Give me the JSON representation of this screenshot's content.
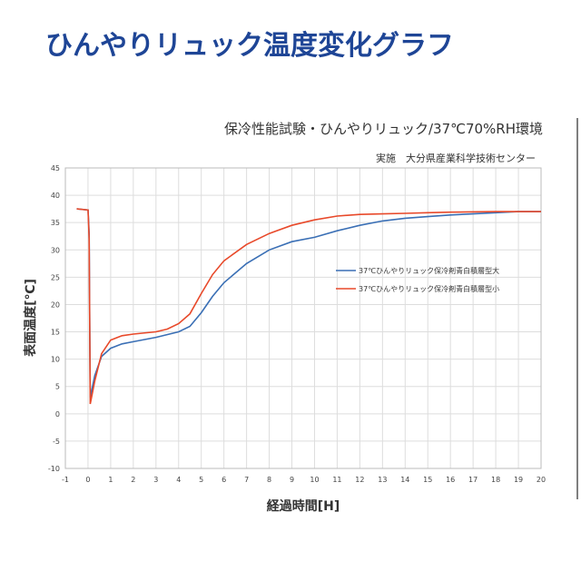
{
  "chart_data": {
    "type": "line",
    "title": "ひんやりリュック温度変化グラフ",
    "subtitle": "保冷性能試験・ひんやりリュック/37℃70%RH環境",
    "note": "実施　大分県産業科学技術センター",
    "xlabel": "経過時間[H]",
    "ylabel": "表面温度[℃]",
    "xlim": [
      -1,
      20
    ],
    "xticks": [
      -1,
      0,
      1,
      2,
      3,
      4,
      5,
      6,
      7,
      8,
      9,
      10,
      11,
      12,
      13,
      14,
      15,
      16,
      17,
      18,
      19,
      20
    ],
    "ylim": [
      -10,
      45
    ],
    "yticks": [
      -10,
      -5,
      0,
      5,
      10,
      15,
      20,
      25,
      30,
      35,
      40,
      45
    ],
    "grid": true,
    "legend": "right",
    "series": [
      {
        "name": "37℃ひんやりリュック保冷剤青白積層型大",
        "color": "#3a6fb5",
        "x": [
          -0.5,
          0,
          0.05,
          0.1,
          0.3,
          0.6,
          1,
          1.5,
          2,
          3,
          4,
          4.5,
          5,
          5.5,
          6,
          7,
          8,
          9,
          10,
          11,
          12,
          13,
          14,
          15,
          16,
          17,
          18,
          19,
          20
        ],
        "values": [
          37.5,
          37.3,
          33,
          3,
          7,
          10.5,
          12,
          12.8,
          13.2,
          14,
          15,
          16,
          18.5,
          21.5,
          24,
          27.5,
          30,
          31.5,
          32.3,
          33.5,
          34.5,
          35.3,
          35.8,
          36.1,
          36.4,
          36.6,
          36.8,
          37,
          37
        ]
      },
      {
        "name": "37℃ひんやりリュック保冷剤青白積層型小",
        "color": "#e8492a",
        "x": [
          -0.5,
          0,
          0.05,
          0.1,
          0.3,
          0.6,
          1,
          1.5,
          2,
          3,
          3.5,
          4,
          4.5,
          5,
          5.5,
          6,
          7,
          8,
          9,
          10,
          11,
          12,
          13,
          14,
          15,
          16,
          18,
          20
        ],
        "values": [
          37.5,
          37.3,
          32,
          1.8,
          6,
          11,
          13.5,
          14.3,
          14.6,
          15,
          15.5,
          16.5,
          18.3,
          22,
          25.5,
          28,
          31,
          33,
          34.5,
          35.5,
          36.2,
          36.5,
          36.6,
          36.7,
          36.8,
          36.9,
          37,
          37
        ]
      }
    ]
  }
}
